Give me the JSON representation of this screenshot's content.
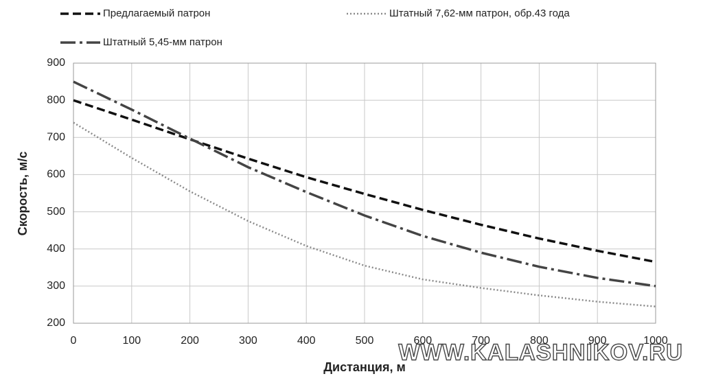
{
  "chart_data": {
    "type": "line",
    "x_label": "Дистанция, м",
    "y_label": "Скорость, м/с",
    "x": [
      0,
      100,
      200,
      300,
      400,
      500,
      600,
      700,
      800,
      900,
      1000
    ],
    "series": [
      {
        "name": "Предлагаемый патрон",
        "color": "#111111",
        "dash": "dashed",
        "values": [
          800,
          748,
          695,
          643,
          593,
          548,
          505,
          465,
          428,
          395,
          365
        ]
      },
      {
        "name": "Штатный 7,62-мм патрон, обр.43 года",
        "color": "#8a8a8a",
        "dash": "dotted",
        "values": [
          740,
          645,
          555,
          475,
          408,
          355,
          318,
          295,
          275,
          258,
          245
        ]
      },
      {
        "name": "Штатный 5,45-мм патрон",
        "color": "#444444",
        "dash": "dashdot",
        "values": [
          850,
          775,
          697,
          620,
          553,
          490,
          435,
          390,
          352,
          322,
          300
        ]
      }
    ],
    "xlim": [
      0,
      1000
    ],
    "xticks": [
      0,
      100,
      200,
      300,
      400,
      500,
      600,
      700,
      800,
      900,
      1000
    ],
    "ylim": [
      200,
      900
    ],
    "yticks": [
      200,
      300,
      400,
      500,
      600,
      700,
      800,
      900
    ],
    "grid": true,
    "legend": "top",
    "watermark": "WWW.KALASHNIKOV.RU"
  }
}
